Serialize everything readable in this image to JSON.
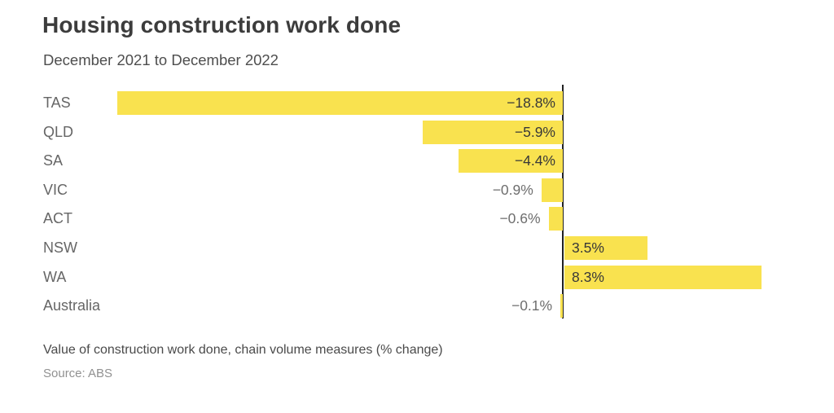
{
  "chart_data": {
    "type": "bar",
    "orientation": "horizontal",
    "title": "Housing construction work done",
    "subtitle": "December 2021 to December 2022",
    "categories": [
      "TAS",
      "QLD",
      "SA",
      "VIC",
      "ACT",
      "NSW",
      "WA",
      "Australia"
    ],
    "values": [
      -18.8,
      -5.9,
      -4.4,
      -0.9,
      -0.6,
      3.5,
      8.3,
      -0.1
    ],
    "value_labels": [
      "−18.8%",
      "−5.9%",
      "−4.4%",
      "−0.9%",
      "−0.6%",
      "3.5%",
      "8.3%",
      "−0.1%"
    ],
    "unit": "% change",
    "baseline": 0,
    "grid": false,
    "legend": false,
    "bar_color": "#F9E24F",
    "zero_line_color": "#212121",
    "note": "Value of construction work done, chain volume measures (% change)",
    "source": "Source: ABS"
  }
}
